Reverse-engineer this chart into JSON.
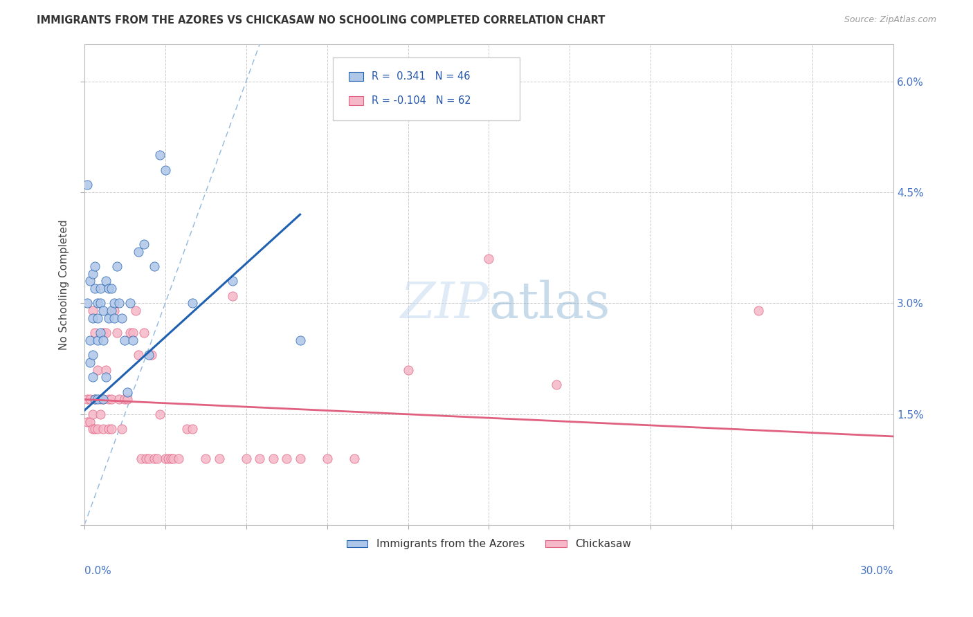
{
  "title": "IMMIGRANTS FROM THE AZORES VS CHICKASAW NO SCHOOLING COMPLETED CORRELATION CHART",
  "source": "Source: ZipAtlas.com",
  "ylabel": "No Schooling Completed",
  "yticks": [
    0.0,
    0.015,
    0.03,
    0.045,
    0.06
  ],
  "ytick_labels": [
    "",
    "1.5%",
    "3.0%",
    "4.5%",
    "6.0%"
  ],
  "xlim": [
    0.0,
    0.3
  ],
  "ylim": [
    0.0,
    0.065
  ],
  "legend_r1": "R =  0.341   N = 46",
  "legend_r2": "R = -0.104   N = 62",
  "legend_label1": "Immigrants from the Azores",
  "legend_label2": "Chickasaw",
  "color_blue": "#aec6e8",
  "color_pink": "#f5b8c8",
  "line_blue": "#2060b0",
  "line_pink": "#e06080",
  "diag_color": "#90b8e0",
  "blue_trend_x": [
    0.0,
    0.08
  ],
  "blue_trend_y": [
    0.0155,
    0.042
  ],
  "pink_trend_x": [
    0.0,
    0.3
  ],
  "pink_trend_y": [
    0.017,
    0.012
  ],
  "blue_x": [
    0.001,
    0.001,
    0.002,
    0.002,
    0.002,
    0.003,
    0.003,
    0.003,
    0.003,
    0.004,
    0.004,
    0.004,
    0.005,
    0.005,
    0.005,
    0.005,
    0.006,
    0.006,
    0.006,
    0.007,
    0.007,
    0.007,
    0.008,
    0.008,
    0.009,
    0.009,
    0.01,
    0.01,
    0.011,
    0.011,
    0.012,
    0.013,
    0.014,
    0.015,
    0.016,
    0.017,
    0.018,
    0.02,
    0.022,
    0.024,
    0.026,
    0.028,
    0.03,
    0.04,
    0.055,
    0.08
  ],
  "blue_y": [
    0.046,
    0.03,
    0.033,
    0.025,
    0.022,
    0.034,
    0.028,
    0.023,
    0.02,
    0.035,
    0.032,
    0.017,
    0.03,
    0.028,
    0.025,
    0.017,
    0.032,
    0.03,
    0.026,
    0.029,
    0.025,
    0.017,
    0.033,
    0.02,
    0.032,
    0.028,
    0.032,
    0.029,
    0.03,
    0.028,
    0.035,
    0.03,
    0.028,
    0.025,
    0.018,
    0.03,
    0.025,
    0.037,
    0.038,
    0.023,
    0.035,
    0.05,
    0.048,
    0.03,
    0.033,
    0.025
  ],
  "pink_x": [
    0.001,
    0.001,
    0.002,
    0.002,
    0.003,
    0.003,
    0.003,
    0.004,
    0.004,
    0.004,
    0.005,
    0.005,
    0.006,
    0.006,
    0.007,
    0.007,
    0.007,
    0.008,
    0.008,
    0.009,
    0.009,
    0.01,
    0.01,
    0.011,
    0.012,
    0.013,
    0.014,
    0.015,
    0.016,
    0.017,
    0.018,
    0.019,
    0.02,
    0.021,
    0.022,
    0.023,
    0.024,
    0.025,
    0.026,
    0.027,
    0.028,
    0.03,
    0.031,
    0.032,
    0.033,
    0.035,
    0.038,
    0.04,
    0.045,
    0.05,
    0.055,
    0.06,
    0.065,
    0.07,
    0.075,
    0.08,
    0.09,
    0.1,
    0.12,
    0.15,
    0.175,
    0.25
  ],
  "pink_y": [
    0.017,
    0.014,
    0.017,
    0.014,
    0.029,
    0.015,
    0.013,
    0.026,
    0.017,
    0.013,
    0.021,
    0.013,
    0.017,
    0.015,
    0.026,
    0.017,
    0.013,
    0.026,
    0.021,
    0.017,
    0.013,
    0.017,
    0.013,
    0.029,
    0.026,
    0.017,
    0.013,
    0.017,
    0.017,
    0.026,
    0.026,
    0.029,
    0.023,
    0.009,
    0.026,
    0.009,
    0.009,
    0.023,
    0.009,
    0.009,
    0.015,
    0.009,
    0.009,
    0.009,
    0.009,
    0.009,
    0.013,
    0.013,
    0.009,
    0.009,
    0.031,
    0.009,
    0.009,
    0.009,
    0.009,
    0.009,
    0.009,
    0.009,
    0.021,
    0.036,
    0.019,
    0.029
  ]
}
